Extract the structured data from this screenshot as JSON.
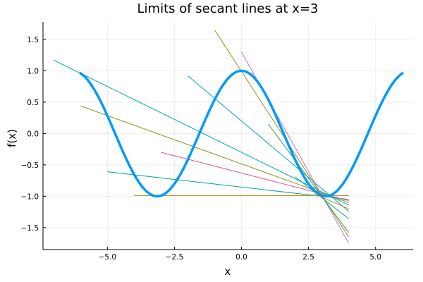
{
  "chart_data": {
    "type": "line",
    "title": "Limits of secant lines at x=3",
    "xlabel": "x",
    "ylabel": "f(x)",
    "xlim": [
      -7.4,
      6.4
    ],
    "ylim": [
      -1.85,
      1.78
    ],
    "xticks": [
      -5.0,
      -2.5,
      0.0,
      2.5,
      5.0
    ],
    "xtick_labels": [
      "−5.0",
      "−2.5",
      "0.0",
      "2.5",
      "5.0"
    ],
    "yticks": [
      -1.5,
      -1.0,
      -0.5,
      0.0,
      0.5,
      1.0,
      1.5
    ],
    "ytick_labels": [
      "−1.5",
      "−1.0",
      "−0.5",
      "0.0",
      "0.5",
      "1.0",
      "1.5"
    ],
    "grid": true,
    "legend": "none",
    "curve": {
      "function": "cos(x)",
      "x_range": [
        -6,
        6
      ],
      "color": "#009AF9"
    },
    "secant_point": 3,
    "secants": [
      {
        "x": [
          -7,
          4
        ],
        "y": [
          1.17,
          -1.14
        ],
        "color": "#00A9AD"
      },
      {
        "x": [
          -6,
          4
        ],
        "y": [
          0.44,
          -1.1
        ],
        "color": "#8E971E"
      },
      {
        "x": [
          -5,
          4
        ],
        "y": [
          -0.61,
          -1.05
        ],
        "color": "#00A98D"
      },
      {
        "x": [
          -4,
          4
        ],
        "y": [
          -0.99,
          -0.99
        ],
        "color": "#B3922B"
      },
      {
        "x": [
          -3,
          4
        ],
        "y": [
          -0.3,
          -1.07
        ],
        "color": "#E44F8B"
      },
      {
        "x": [
          -2,
          4
        ],
        "y": [
          0.92,
          -1.24
        ],
        "color": "#00A9AD"
      },
      {
        "x": [
          -1,
          4
        ],
        "y": [
          1.65,
          -1.65
        ],
        "color": "#8E971E"
      },
      {
        "x": [
          0,
          4
        ],
        "y": [
          1.3,
          -1.75
        ],
        "color": "#C271D2"
      },
      {
        "x": [
          1,
          4
        ],
        "y": [
          0.15,
          -1.58
        ],
        "color": "#3DA44D"
      },
      {
        "x": [
          2,
          4
        ],
        "y": [
          -0.69,
          -1.36
        ],
        "color": "#00A98D"
      },
      {
        "x": [
          2.7,
          4
        ],
        "y": [
          -0.96,
          -1.2
        ],
        "color": "#B3922B"
      }
    ]
  }
}
